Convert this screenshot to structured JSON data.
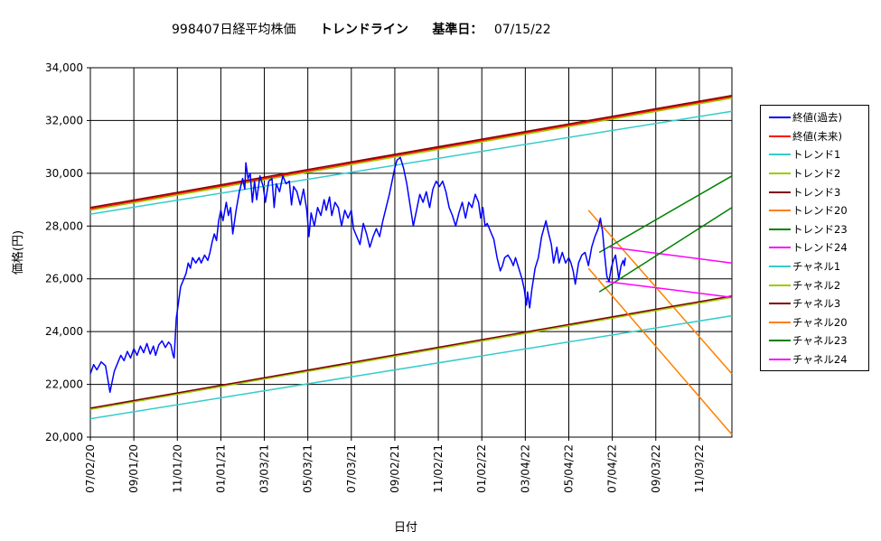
{
  "title": {
    "code": "998407日経平均株価",
    "main": "トレンドライン",
    "base": "基準日：",
    "base_date": "07/15/22"
  },
  "chart_data": {
    "type": "line",
    "ylabel": "価格(円)",
    "xlabel": "日付",
    "ylim": [
      20000,
      34000
    ],
    "yticks": [
      "20,000",
      "22,000",
      "24,000",
      "26,000",
      "28,000",
      "30,000",
      "32,000",
      "34,000"
    ],
    "xlim": [
      0,
      29.5
    ],
    "xticks": [
      {
        "t": 0,
        "label": "07/02/20"
      },
      {
        "t": 2,
        "label": "09/01/20"
      },
      {
        "t": 4,
        "label": "11/01/20"
      },
      {
        "t": 6,
        "label": "01/01/21"
      },
      {
        "t": 8,
        "label": "03/03/21"
      },
      {
        "t": 10,
        "label": "05/03/21"
      },
      {
        "t": 12,
        "label": "07/03/21"
      },
      {
        "t": 14,
        "label": "09/02/21"
      },
      {
        "t": 16,
        "label": "11/02/21"
      },
      {
        "t": 18,
        "label": "01/02/22"
      },
      {
        "t": 20,
        "label": "03/04/22"
      },
      {
        "t": 22,
        "label": "05/04/22"
      },
      {
        "t": 24,
        "label": "07/04/22"
      },
      {
        "t": 26,
        "label": "09/03/22"
      },
      {
        "t": 28,
        "label": "11/03/22"
      }
    ],
    "grid": true,
    "legend_position": "right",
    "series": [
      {
        "name": "終値(過去)",
        "color": "#0000ff",
        "width": 1.5,
        "kind": "price",
        "points": [
          [
            0.0,
            22400
          ],
          [
            0.15,
            22750
          ],
          [
            0.3,
            22550
          ],
          [
            0.5,
            22850
          ],
          [
            0.7,
            22700
          ],
          [
            0.8,
            22200
          ],
          [
            0.9,
            21700
          ],
          [
            1.0,
            22100
          ],
          [
            1.1,
            22500
          ],
          [
            1.25,
            22800
          ],
          [
            1.4,
            23100
          ],
          [
            1.55,
            22900
          ],
          [
            1.7,
            23250
          ],
          [
            1.85,
            23000
          ],
          [
            2.0,
            23350
          ],
          [
            2.15,
            23100
          ],
          [
            2.3,
            23450
          ],
          [
            2.45,
            23200
          ],
          [
            2.6,
            23550
          ],
          [
            2.75,
            23150
          ],
          [
            2.9,
            23450
          ],
          [
            3.0,
            23100
          ],
          [
            3.15,
            23500
          ],
          [
            3.3,
            23650
          ],
          [
            3.45,
            23400
          ],
          [
            3.6,
            23600
          ],
          [
            3.7,
            23500
          ],
          [
            3.8,
            23100
          ],
          [
            3.85,
            23000
          ],
          [
            3.95,
            24500
          ],
          [
            4.05,
            25100
          ],
          [
            4.15,
            25700
          ],
          [
            4.3,
            26000
          ],
          [
            4.4,
            26200
          ],
          [
            4.5,
            26600
          ],
          [
            4.6,
            26400
          ],
          [
            4.7,
            26800
          ],
          [
            4.85,
            26600
          ],
          [
            5.0,
            26800
          ],
          [
            5.1,
            26600
          ],
          [
            5.25,
            26900
          ],
          [
            5.4,
            26700
          ],
          [
            5.5,
            27000
          ],
          [
            5.6,
            27400
          ],
          [
            5.7,
            27700
          ],
          [
            5.8,
            27450
          ],
          [
            5.9,
            28200
          ],
          [
            6.0,
            28600
          ],
          [
            6.1,
            28200
          ],
          [
            6.25,
            28900
          ],
          [
            6.35,
            28400
          ],
          [
            6.45,
            28700
          ],
          [
            6.55,
            27700
          ],
          [
            6.7,
            28600
          ],
          [
            6.85,
            29300
          ],
          [
            7.0,
            29800
          ],
          [
            7.1,
            29400
          ],
          [
            7.15,
            30400
          ],
          [
            7.25,
            29800
          ],
          [
            7.35,
            30000
          ],
          [
            7.45,
            28900
          ],
          [
            7.55,
            29700
          ],
          [
            7.65,
            29000
          ],
          [
            7.8,
            29900
          ],
          [
            7.95,
            29500
          ],
          [
            8.05,
            28900
          ],
          [
            8.2,
            29700
          ],
          [
            8.35,
            29800
          ],
          [
            8.45,
            28700
          ],
          [
            8.55,
            29600
          ],
          [
            8.7,
            29300
          ],
          [
            8.85,
            29900
          ],
          [
            9.0,
            29600
          ],
          [
            9.15,
            29700
          ],
          [
            9.25,
            28800
          ],
          [
            9.35,
            29500
          ],
          [
            9.5,
            29300
          ],
          [
            9.65,
            28800
          ],
          [
            9.8,
            29400
          ],
          [
            9.95,
            28600
          ],
          [
            10.05,
            27600
          ],
          [
            10.15,
            28500
          ],
          [
            10.3,
            28000
          ],
          [
            10.45,
            28700
          ],
          [
            10.6,
            28400
          ],
          [
            10.75,
            29000
          ],
          [
            10.85,
            28600
          ],
          [
            11.0,
            29100
          ],
          [
            11.1,
            28400
          ],
          [
            11.25,
            28900
          ],
          [
            11.4,
            28700
          ],
          [
            11.55,
            28000
          ],
          [
            11.7,
            28600
          ],
          [
            11.85,
            28300
          ],
          [
            12.0,
            28600
          ],
          [
            12.1,
            27900
          ],
          [
            12.25,
            27600
          ],
          [
            12.4,
            27300
          ],
          [
            12.55,
            28100
          ],
          [
            12.7,
            27700
          ],
          [
            12.85,
            27200
          ],
          [
            13.0,
            27600
          ],
          [
            13.15,
            27900
          ],
          [
            13.3,
            27600
          ],
          [
            13.45,
            28200
          ],
          [
            13.6,
            28700
          ],
          [
            13.75,
            29200
          ],
          [
            13.9,
            29800
          ],
          [
            14.0,
            30200
          ],
          [
            14.1,
            30500
          ],
          [
            14.25,
            30600
          ],
          [
            14.4,
            30200
          ],
          [
            14.55,
            29600
          ],
          [
            14.7,
            28800
          ],
          [
            14.85,
            28000
          ],
          [
            15.0,
            28600
          ],
          [
            15.15,
            29200
          ],
          [
            15.3,
            28900
          ],
          [
            15.45,
            29300
          ],
          [
            15.6,
            28700
          ],
          [
            15.75,
            29400
          ],
          [
            15.9,
            29700
          ],
          [
            16.05,
            29500
          ],
          [
            16.2,
            29700
          ],
          [
            16.35,
            29300
          ],
          [
            16.5,
            28700
          ],
          [
            16.65,
            28400
          ],
          [
            16.8,
            28000
          ],
          [
            16.95,
            28500
          ],
          [
            17.1,
            28900
          ],
          [
            17.25,
            28300
          ],
          [
            17.4,
            28900
          ],
          [
            17.55,
            28700
          ],
          [
            17.7,
            29200
          ],
          [
            17.85,
            28900
          ],
          [
            17.95,
            28300
          ],
          [
            18.05,
            28700
          ],
          [
            18.15,
            28000
          ],
          [
            18.25,
            28100
          ],
          [
            18.4,
            27800
          ],
          [
            18.55,
            27500
          ],
          [
            18.7,
            26800
          ],
          [
            18.85,
            26300
          ],
          [
            18.95,
            26500
          ],
          [
            19.05,
            26800
          ],
          [
            19.2,
            26900
          ],
          [
            19.35,
            26700
          ],
          [
            19.45,
            26500
          ],
          [
            19.55,
            26800
          ],
          [
            19.7,
            26400
          ],
          [
            19.85,
            26000
          ],
          [
            19.95,
            25600
          ],
          [
            20.05,
            25000
          ],
          [
            20.1,
            25500
          ],
          [
            20.2,
            24900
          ],
          [
            20.3,
            25600
          ],
          [
            20.45,
            26400
          ],
          [
            20.6,
            26800
          ],
          [
            20.75,
            27600
          ],
          [
            20.85,
            27900
          ],
          [
            20.95,
            28200
          ],
          [
            21.05,
            27800
          ],
          [
            21.2,
            27300
          ],
          [
            21.3,
            26600
          ],
          [
            21.45,
            27200
          ],
          [
            21.55,
            26600
          ],
          [
            21.7,
            27000
          ],
          [
            21.85,
            26600
          ],
          [
            22.0,
            26800
          ],
          [
            22.1,
            26600
          ],
          [
            22.2,
            26300
          ],
          [
            22.3,
            25800
          ],
          [
            22.45,
            26600
          ],
          [
            22.6,
            26900
          ],
          [
            22.75,
            27000
          ],
          [
            22.9,
            26500
          ],
          [
            23.05,
            27200
          ],
          [
            23.2,
            27600
          ],
          [
            23.35,
            27900
          ],
          [
            23.45,
            28300
          ],
          [
            23.55,
            27800
          ],
          [
            23.65,
            26900
          ],
          [
            23.75,
            26100
          ],
          [
            23.85,
            25900
          ],
          [
            23.95,
            26400
          ],
          [
            24.05,
            26700
          ],
          [
            24.15,
            26900
          ],
          [
            24.2,
            26600
          ],
          [
            24.3,
            26000
          ],
          [
            24.4,
            26500
          ],
          [
            24.5,
            26700
          ],
          [
            24.55,
            26500
          ],
          [
            24.6,
            26800
          ]
        ]
      },
      {
        "name": "終値(未来)",
        "color": "#ff0000",
        "width": 1.5,
        "kind": "line",
        "points": [
          [
            0,
            28650
          ],
          [
            29.5,
            32900
          ]
        ]
      },
      {
        "name": "トレンド1",
        "color": "#33cccc",
        "width": 1.5,
        "kind": "line",
        "points": [
          [
            0,
            28450
          ],
          [
            29.5,
            32350
          ]
        ]
      },
      {
        "name": "トレンド2",
        "color": "#99cc00",
        "width": 1.5,
        "kind": "line",
        "points": [
          [
            0,
            28600
          ],
          [
            29.5,
            32850
          ]
        ]
      },
      {
        "name": "トレンド3",
        "color": "#800000",
        "width": 1.5,
        "kind": "line",
        "points": [
          [
            0,
            28700
          ],
          [
            29.5,
            32950
          ]
        ]
      },
      {
        "name": "トレンド20",
        "color": "#ff8000",
        "width": 1.5,
        "kind": "line",
        "points": [
          [
            22.9,
            28600
          ],
          [
            29.5,
            22400
          ]
        ]
      },
      {
        "name": "トレンド23",
        "color": "#008000",
        "width": 1.5,
        "kind": "line",
        "points": [
          [
            23.4,
            27000
          ],
          [
            29.5,
            29900
          ]
        ]
      },
      {
        "name": "トレンド24",
        "color": "#ff00ff",
        "width": 1.5,
        "kind": "line",
        "points": [
          [
            23.9,
            27200
          ],
          [
            29.5,
            26600
          ]
        ]
      },
      {
        "name": "チャネル1",
        "color": "#33cccc",
        "width": 1.5,
        "kind": "line",
        "points": [
          [
            0,
            20700
          ],
          [
            29.5,
            24600
          ]
        ]
      },
      {
        "name": "チャネル2",
        "color": "#99cc00",
        "width": 1.5,
        "kind": "line",
        "points": [
          [
            0,
            21050
          ],
          [
            29.5,
            25300
          ]
        ]
      },
      {
        "name": "チャネル3",
        "color": "#800000",
        "width": 1.5,
        "kind": "line",
        "points": [
          [
            0,
            21100
          ],
          [
            29.5,
            25350
          ]
        ]
      },
      {
        "name": "チャネル20",
        "color": "#ff8000",
        "width": 1.5,
        "kind": "line",
        "points": [
          [
            22.9,
            26400
          ],
          [
            29.5,
            20100
          ]
        ]
      },
      {
        "name": "チャネル23",
        "color": "#008000",
        "width": 1.5,
        "kind": "line",
        "points": [
          [
            23.4,
            25500
          ],
          [
            29.5,
            28700
          ]
        ]
      },
      {
        "name": "チャネル24",
        "color": "#ff00ff",
        "width": 1.5,
        "kind": "line",
        "points": [
          [
            23.7,
            25900
          ],
          [
            29.5,
            25300
          ]
        ]
      }
    ]
  }
}
